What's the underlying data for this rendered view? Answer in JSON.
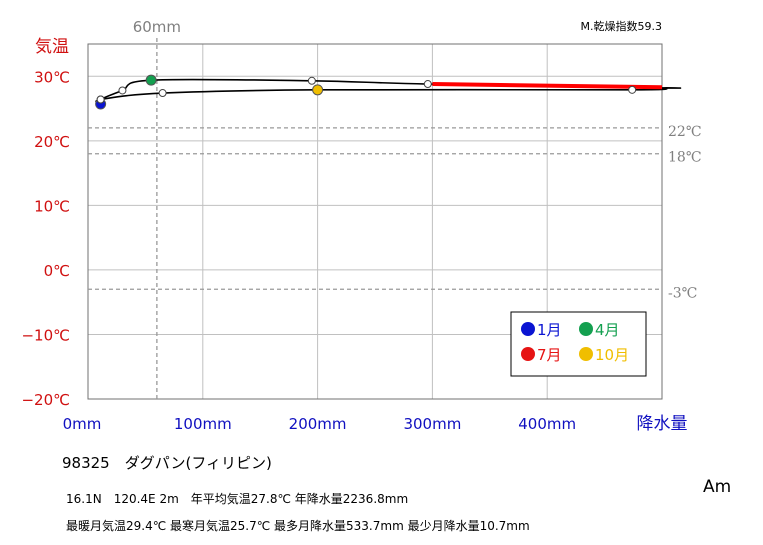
{
  "chart_data": {
    "type": "line",
    "chart_kind": "hythergraph (climograph)",
    "ylabel": "気温",
    "xlabel": "降水量",
    "dryness_index": "M.乾燥指数59.3",
    "x_axis": {
      "range": [
        0,
        500
      ],
      "ticks": [
        0,
        100,
        200,
        300,
        400
      ],
      "tick_labels": [
        "0mm",
        "100mm",
        "200mm",
        "300mm",
        "400mm"
      ],
      "color": "#1010c0"
    },
    "y_axis": {
      "range": [
        -20,
        35
      ],
      "ticks": [
        -20,
        -10,
        0,
        10,
        20,
        30
      ],
      "tick_labels": [
        "−20℃",
        "−10℃",
        "0℃",
        "10℃",
        "20℃",
        "30℃"
      ],
      "color": "#d01010"
    },
    "grid": true,
    "reference_lines": [
      {
        "axis": "x",
        "value": 60,
        "label": "60mm"
      },
      {
        "axis": "y",
        "value": 22,
        "label": "22℃"
      },
      {
        "axis": "y",
        "value": 18,
        "label": "18℃"
      },
      {
        "axis": "y",
        "value": -3,
        "label": "-3℃"
      }
    ],
    "points": [
      {
        "month": 1,
        "precip": 11,
        "temp": 25.7
      },
      {
        "month": 2,
        "precip": 11,
        "temp": 26.4
      },
      {
        "month": 3,
        "precip": 30,
        "temp": 27.8
      },
      {
        "month": 4,
        "precip": 55,
        "temp": 29.4
      },
      {
        "month": 5,
        "precip": 195,
        "temp": 29.3
      },
      {
        "month": 6,
        "precip": 296,
        "temp": 28.8
      },
      {
        "month": 7,
        "precip": 534,
        "temp": 28.2
      },
      {
        "month": 8,
        "precip": 512,
        "temp": 28.2
      },
      {
        "month": 9,
        "precip": 474,
        "temp": 27.9
      },
      {
        "month": 10,
        "precip": 200,
        "temp": 27.9
      },
      {
        "month": 11,
        "precip": 65,
        "temp": 27.4
      },
      {
        "month": 12,
        "precip": 11,
        "temp": 26.4
      }
    ],
    "legend": [
      {
        "label": "1月",
        "color": "#0a14d2",
        "month": 1
      },
      {
        "label": "4月",
        "color": "#14a050",
        "month": 4
      },
      {
        "label": "7月",
        "color": "#e61414",
        "month": 7
      },
      {
        "label": "10月",
        "color": "#f0be00",
        "month": 10
      }
    ],
    "legend_placement": "bottom-right",
    "colors": {
      "line": "#000000",
      "wet_segment": "#ff0000",
      "reference": "#999999",
      "grid": "#c0c0c0"
    }
  },
  "station": {
    "title": "98325　ダグパン(フィリピン)",
    "summary": "16.1N　120.4E 2m　年平均気温27.8℃ 年降水量2236.8mm",
    "extremes": "最暖月気温29.4℃ 最寒月気温25.7℃ 最多月降水量533.7mm 最少月降水量10.7mm",
    "climate_code": "Am"
  }
}
